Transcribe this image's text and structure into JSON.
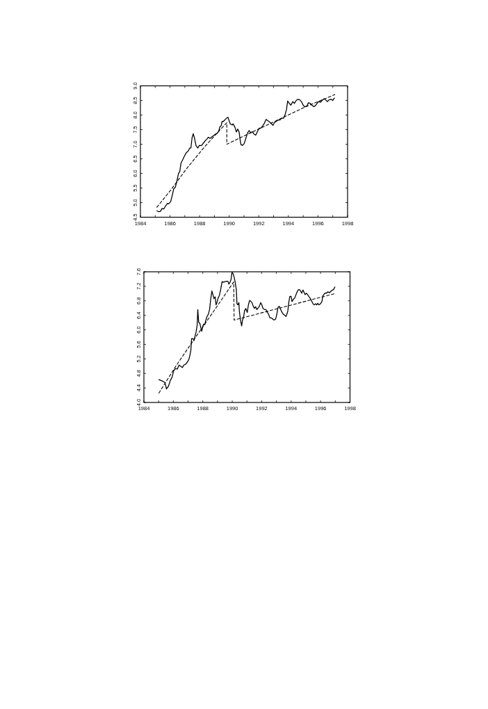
{
  "chart_data": [
    {
      "type": "line",
      "xlim": [
        1984,
        1998
      ],
      "xticks": [
        1984,
        {
          "value": 1985,
          "label": null
        },
        1986,
        {
          "value": 1987,
          "label": null
        },
        1988,
        {
          "value": 1989,
          "label": null
        },
        1990,
        {
          "value": 1991,
          "label": null
        },
        1992,
        {
          "value": 1993,
          "label": null
        },
        1994,
        {
          "value": 1995,
          "label": null
        },
        1996,
        {
          "value": 1997,
          "label": null
        },
        1998
      ],
      "ylim": [
        4.5,
        9
      ],
      "yticks": [
        4.5,
        {
          "value": 5,
          "label": "5.0"
        },
        5.5,
        {
          "value": 6,
          "label": "6.0"
        },
        6.5,
        {
          "value": 7,
          "label": "7.0"
        },
        7.5,
        {
          "value": 8,
          "label": "8.0"
        },
        8.5,
        {
          "value": 9,
          "label": "9.0"
        }
      ],
      "series": [
        {
          "color": "#000000",
          "x": [
            1985.11,
            1985.22,
            1985.35,
            1985.46,
            1985.58,
            1985.69,
            1985.82,
            1985.92,
            1986.05,
            1986.16,
            1986.25,
            1986.36,
            1986.47,
            1986.57,
            1986.66,
            1986.74,
            1986.86,
            1986.97,
            1987.1,
            1987.22,
            1987.33,
            1987.41,
            1987.49,
            1987.57,
            1987.65,
            1987.76,
            1987.88,
            1987.99,
            1988.12,
            1988.24,
            1988.35,
            1988.48,
            1988.59,
            1988.71,
            1988.82,
            1988.95,
            1989.05,
            1989.16,
            1989.29,
            1989.37,
            1989.45,
            1989.52,
            1989.6,
            1989.68,
            1989.76,
            1989.84,
            1989.92,
            1989.99,
            1990.07,
            1990.2,
            1990.26,
            1990.39,
            1990.48,
            1990.57,
            1990.67,
            1990.73,
            1990.79,
            1990.89,
            1991.01,
            1991.12,
            1991.24,
            1991.35,
            1991.45,
            1991.56,
            1991.67,
            1991.79,
            1991.9,
            1992.03,
            1992.14,
            1992.26,
            1992.37,
            1992.49,
            1992.6,
            1992.73,
            1992.84,
            1992.96,
            1993.07,
            1993.2,
            1993.31,
            1993.43,
            1993.54,
            1993.67,
            1993.78,
            1993.87,
            1993.95,
            1994.06,
            1994.17,
            1994.3,
            1994.41,
            1994.53,
            1994.64,
            1994.77,
            1994.88,
            1995,
            1995.11,
            1995.24,
            1995.35,
            1995.47,
            1995.58,
            1995.71,
            1995.82,
            1995.94,
            1996.05,
            1996.17,
            1996.28,
            1996.41,
            1996.52,
            1996.64,
            1996.75,
            1996.88,
            1996.99,
            1997.11
          ],
          "values": [
            4.72,
            4.69,
            4.7,
            4.8,
            4.78,
            4.88,
            4.97,
            4.96,
            5.04,
            5.27,
            5.47,
            5.53,
            5.75,
            5.99,
            6.07,
            6.35,
            6.47,
            6.59,
            6.71,
            6.76,
            6.87,
            6.87,
            7.22,
            7.36,
            7.22,
            6.95,
            6.87,
            6.96,
            6.95,
            7.03,
            7.1,
            7.17,
            7.24,
            7.2,
            7.25,
            7.3,
            7.34,
            7.36,
            7.44,
            7.6,
            7.62,
            7.78,
            7.78,
            7.82,
            7.86,
            7.9,
            7.92,
            7.81,
            7.7,
            7.66,
            7.7,
            7.58,
            7.42,
            7.52,
            7.42,
            7.18,
            6.99,
            6.96,
            7.02,
            7.19,
            7.39,
            7.47,
            7.39,
            7.43,
            7.35,
            7.31,
            7.43,
            7.55,
            7.55,
            7.63,
            7.71,
            7.85,
            7.81,
            7.76,
            7.71,
            7.65,
            7.75,
            7.79,
            7.83,
            7.83,
            7.89,
            7.89,
            8.02,
            8.18,
            8.48,
            8.4,
            8.34,
            8.46,
            8.4,
            8.5,
            8.54,
            8.52,
            8.46,
            8.34,
            8.28,
            8.3,
            8.42,
            8.4,
            8.34,
            8.29,
            8.32,
            8.4,
            8.46,
            8.44,
            8.5,
            8.56,
            8.52,
            8.46,
            8.52,
            8.54,
            8.5,
            8.58
          ]
        },
        {
          "color": "#000000",
          "line_style": "dashed",
          "x": [
            1985.11,
            1986.05,
            1987.1,
            1988.2,
            1989.1,
            1989.84,
            1989.84,
            1992.11,
            1995.24,
            1997.14
          ],
          "values": [
            4.84,
            5.43,
            6.15,
            6.83,
            7.34,
            7.74,
            7.0,
            7.55,
            8.3,
            8.7
          ]
        }
      ]
    },
    {
      "type": "line",
      "xlim": [
        1984,
        1998
      ],
      "xticks": [
        1984,
        {
          "value": 1985,
          "label": null
        },
        1986,
        {
          "value": 1987,
          "label": null
        },
        1988,
        {
          "value": 1989,
          "label": null
        },
        1990,
        {
          "value": 1991,
          "label": null
        },
        1992,
        {
          "value": 1993,
          "label": null
        },
        1994,
        {
          "value": 1995,
          "label": null
        },
        1996,
        {
          "value": 1997,
          "label": null
        },
        1998
      ],
      "ylim": [
        4,
        7.6
      ],
      "yticks": [
        {
          "value": 4,
          "label": "4.0"
        },
        4.4,
        4.8,
        5.2,
        5.6,
        {
          "value": 6,
          "label": "6.0"
        },
        6.4,
        6.8,
        7.2,
        7.6
      ],
      "series": [
        {
          "color": "#000000",
          "x": [
            1985.02,
            1985.24,
            1985.42,
            1985.47,
            1985.53,
            1985.67,
            1985.8,
            1985.91,
            1986.02,
            1986.14,
            1986.27,
            1986.39,
            1986.49,
            1986.61,
            1986.72,
            1986.85,
            1986.96,
            1987.05,
            1987.13,
            1987.19,
            1987.24,
            1987.33,
            1987.4,
            1987.47,
            1987.55,
            1987.62,
            1987.66,
            1987.72,
            1987.8,
            1987.87,
            1987.93,
            1987.99,
            1988.05,
            1988.13,
            1988.21,
            1988.29,
            1988.38,
            1988.46,
            1988.54,
            1988.62,
            1988.69,
            1988.76,
            1988.84,
            1988.9,
            1988.96,
            1989.04,
            1989.12,
            1989.21,
            1989.31,
            1989.4,
            1989.51,
            1989.62,
            1989.71,
            1989.77,
            1989.85,
            1989.92,
            1989.98,
            1990.06,
            1990.13,
            1990.21,
            1990.28,
            1990.32,
            1990.38,
            1990.45,
            1990.49,
            1990.56,
            1990.64,
            1990.7,
            1990.76,
            1990.84,
            1990.92,
            1991.02,
            1991.1,
            1991.18,
            1991.26,
            1991.34,
            1991.43,
            1991.51,
            1991.59,
            1991.67,
            1991.74,
            1991.84,
            1991.93,
            1992.01,
            1992.09,
            1992.2,
            1992.29,
            1992.37,
            1992.47,
            1992.56,
            1992.65,
            1992.75,
            1992.84,
            1992.95,
            1993.03,
            1993.11,
            1993.19,
            1993.26,
            1993.37,
            1993.47,
            1993.58,
            1993.65,
            1993.73,
            1993.78,
            1993.84,
            1993.91,
            1994,
            1994.06,
            1994.16,
            1994.25,
            1994.33,
            1994.41,
            1994.48,
            1994.56,
            1994.64,
            1994.72,
            1994.8,
            1994.87,
            1994.95,
            1995.03,
            1995.12,
            1995.22,
            1995.31,
            1995.41,
            1995.5,
            1995.58,
            1995.66,
            1995.74,
            1995.81,
            1995.89,
            1996,
            1996.09,
            1996.16,
            1996.25,
            1996.35,
            1996.41,
            1996.5,
            1996.6,
            1996.69,
            1996.78,
            1996.88,
            1996.97
          ],
          "values": [
            4.63,
            4.59,
            4.55,
            4.49,
            4.37,
            4.45,
            4.61,
            4.69,
            4.87,
            4.93,
            4.92,
            5.03,
            5.0,
            4.96,
            5.03,
            5.06,
            5.12,
            5.18,
            5.31,
            5.44,
            5.76,
            5.76,
            5.7,
            5.82,
            5.95,
            6.14,
            6.56,
            6.21,
            6.18,
            6.05,
            5.96,
            6.08,
            6.16,
            6.14,
            6.27,
            6.37,
            6.43,
            6.56,
            6.85,
            7.07,
            6.97,
            6.86,
            6.91,
            6.69,
            6.75,
            6.88,
            6.94,
            7.1,
            7.33,
            7.31,
            7.33,
            7.34,
            7.34,
            7.26,
            7.31,
            7.39,
            7.58,
            7.55,
            7.45,
            7.29,
            7.1,
            6.72,
            6.69,
            6.75,
            6.49,
            6.27,
            6.11,
            6.27,
            6.33,
            6.53,
            6.59,
            6.48,
            6.69,
            6.81,
            6.79,
            6.75,
            6.65,
            6.59,
            6.64,
            6.56,
            6.59,
            6.65,
            6.75,
            6.69,
            6.59,
            6.56,
            6.56,
            6.49,
            6.43,
            6.33,
            6.33,
            6.3,
            6.27,
            6.3,
            6.43,
            6.62,
            6.65,
            6.59,
            6.49,
            6.43,
            6.4,
            6.37,
            6.45,
            6.53,
            6.75,
            6.92,
            6.92,
            6.78,
            6.85,
            6.88,
            6.97,
            7.05,
            7.1,
            7.11,
            7.07,
            7.01,
            7.1,
            7.04,
            6.97,
            7.01,
            6.97,
            6.91,
            6.86,
            6.78,
            6.71,
            6.69,
            6.72,
            6.69,
            6.73,
            6.69,
            6.72,
            6.78,
            6.94,
            6.99,
            7.02,
            7.01,
            7.05,
            7.02,
            7.06,
            7.09,
            7.11,
            7.18
          ]
        },
        {
          "color": "#000000",
          "line_style": "dashed",
          "x": [
            1985.02,
            1986.2,
            1987.55,
            1988.7,
            1990.1,
            1990.13,
            1996.97
          ],
          "values": [
            4.26,
            5.02,
            5.82,
            6.49,
            7.32,
            6.27,
            7.0
          ]
        }
      ]
    }
  ]
}
